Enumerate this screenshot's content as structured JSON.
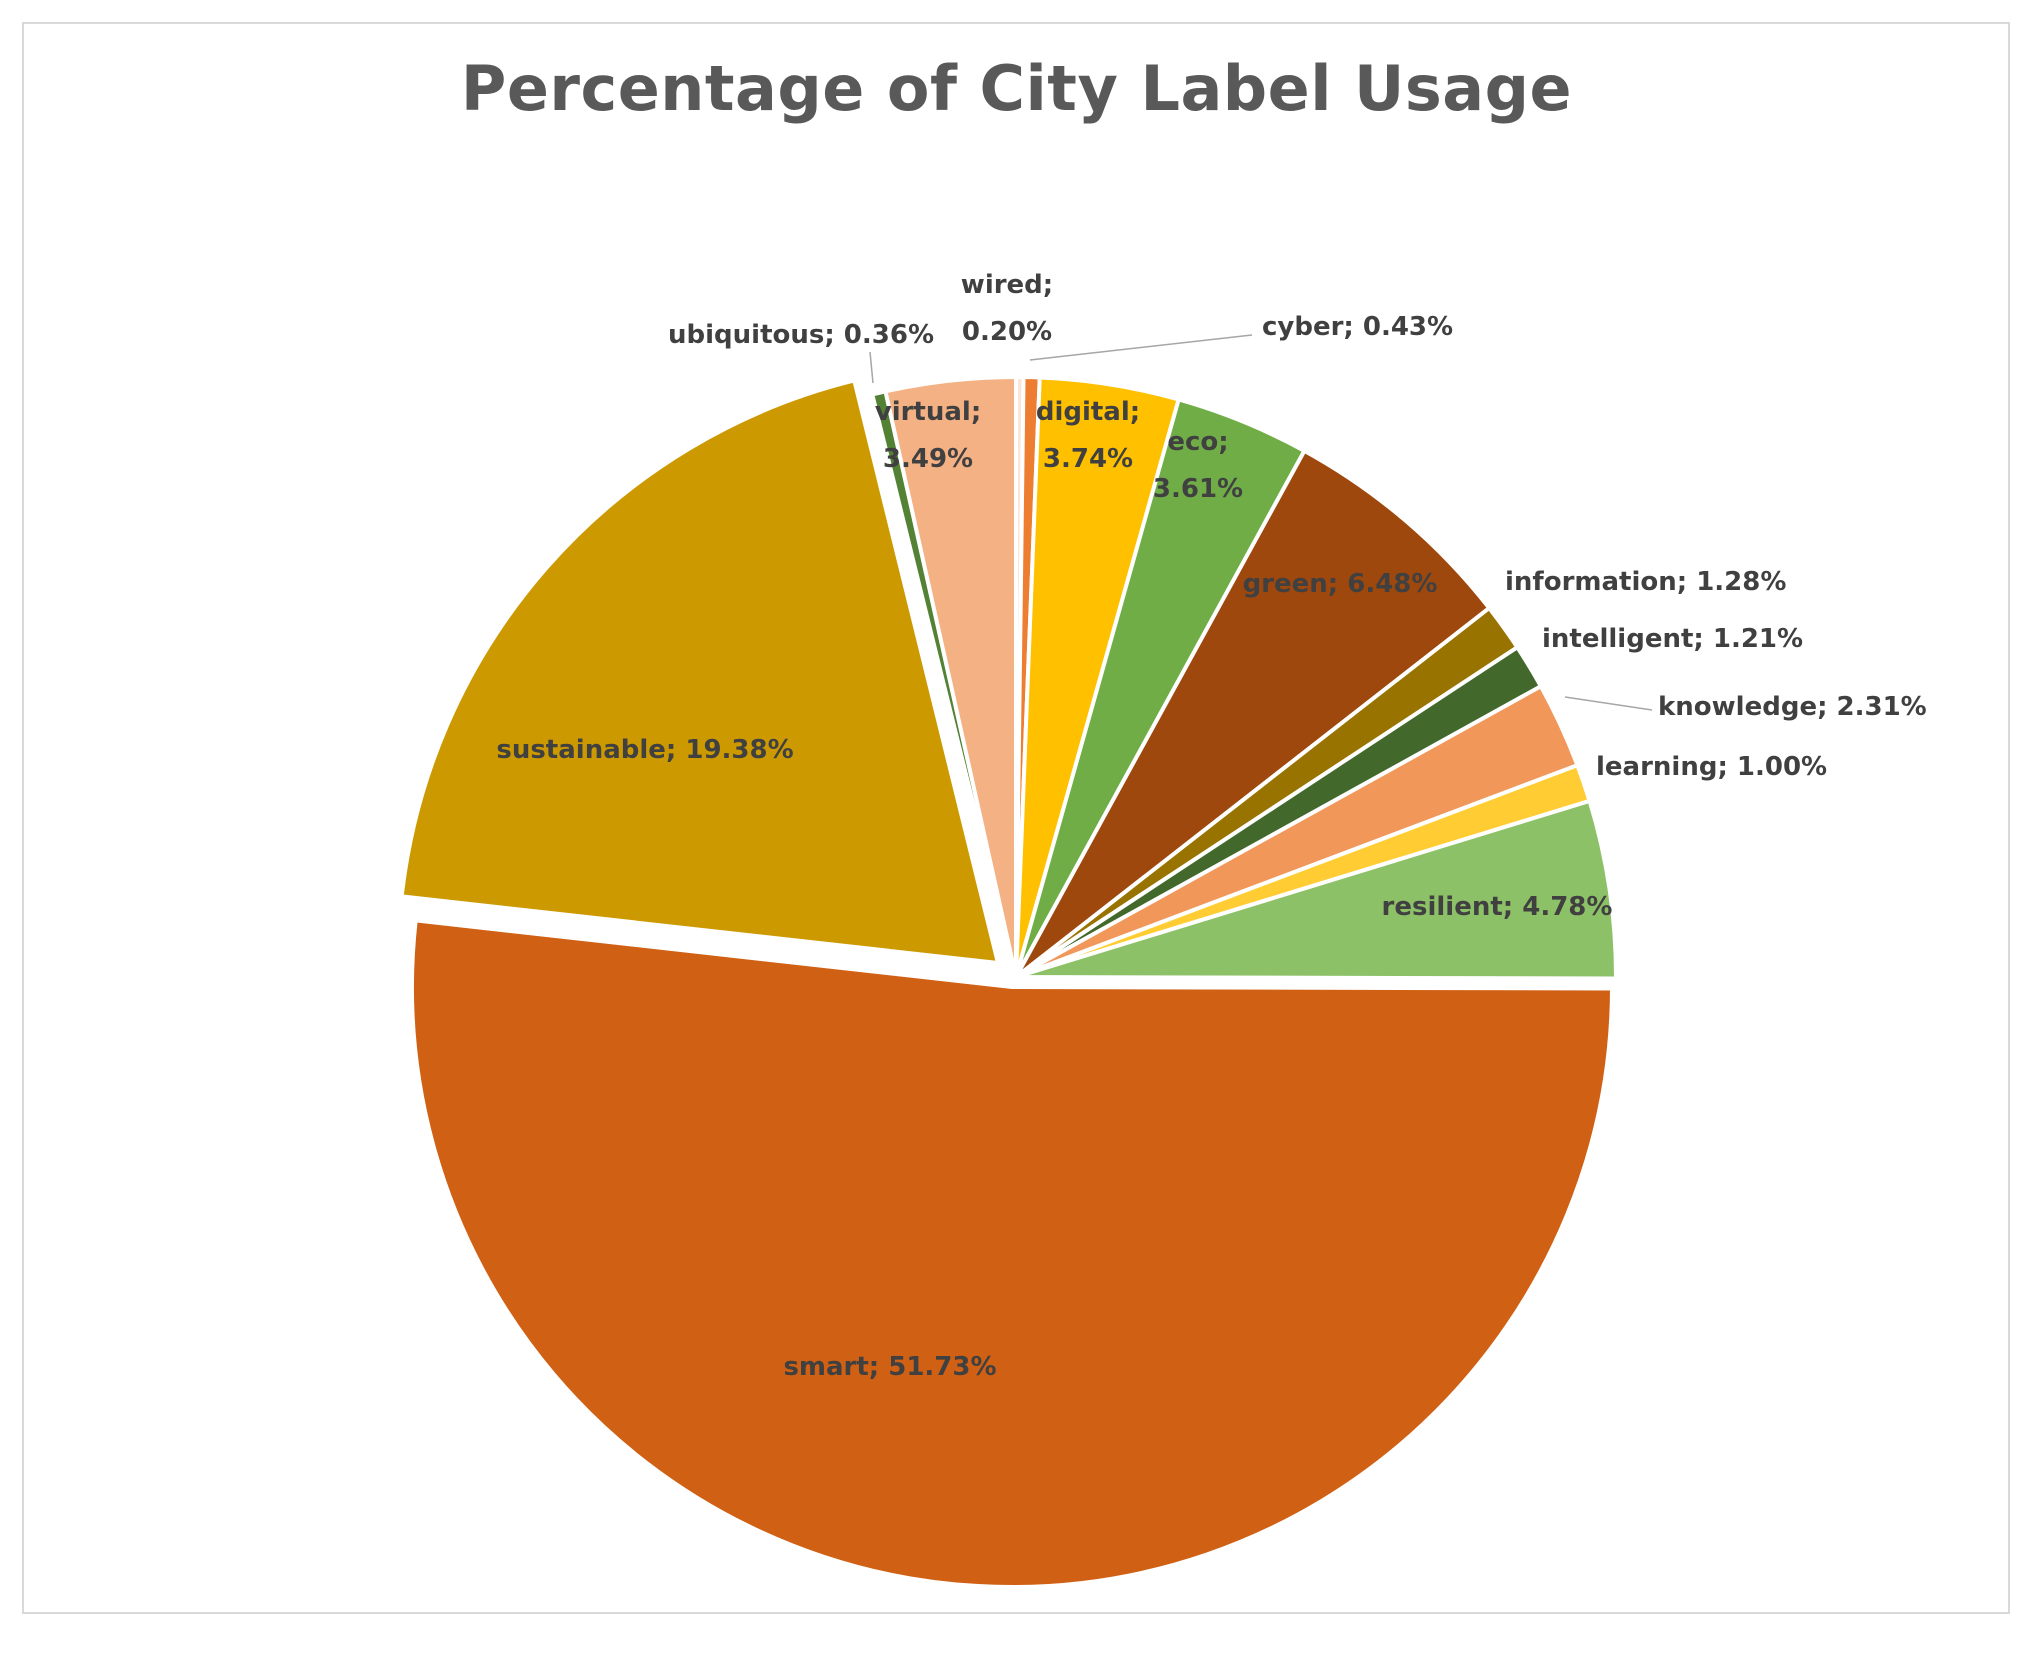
{
  "chart_data": {
    "type": "pie",
    "title": "Percentage of City Label Usage",
    "slices": [
      {
        "name": "wired",
        "value": 0.2,
        "display": "0.20%",
        "color": "#fbe5d6"
      },
      {
        "name": "cyber",
        "value": 0.43,
        "display": "0.43%",
        "color": "#ed7d31"
      },
      {
        "name": "digital",
        "value": 3.74,
        "display": "3.74%",
        "color": "#ffc000"
      },
      {
        "name": "eco",
        "value": 3.61,
        "display": "3.61%",
        "color": "#70ad47"
      },
      {
        "name": "green",
        "value": 6.48,
        "display": "6.48%",
        "color": "#9e480e"
      },
      {
        "name": "information",
        "value": 1.28,
        "display": "1.28%",
        "color": "#997300"
      },
      {
        "name": "intelligent",
        "value": 1.21,
        "display": "1.21%",
        "color": "#43682b"
      },
      {
        "name": "knowledge",
        "value": 2.31,
        "display": "2.31%",
        "color": "#f1975a"
      },
      {
        "name": "learning",
        "value": 1.0,
        "display": "1.00%",
        "color": "#ffcd33"
      },
      {
        "name": "resilient",
        "value": 4.78,
        "display": "4.78%",
        "color": "#8cc168"
      },
      {
        "name": "smart",
        "value": 51.73,
        "display": "51.73%",
        "color": "#d06013"
      },
      {
        "name": "sustainable",
        "value": 19.38,
        "display": "19.38%",
        "color": "#cc9a00"
      },
      {
        "name": "ubiquitous",
        "value": 0.36,
        "display": "0.36%",
        "color": "#548235"
      },
      {
        "name": "virtual",
        "value": 3.49,
        "display": "3.49%",
        "color": "#f4b183"
      }
    ]
  }
}
